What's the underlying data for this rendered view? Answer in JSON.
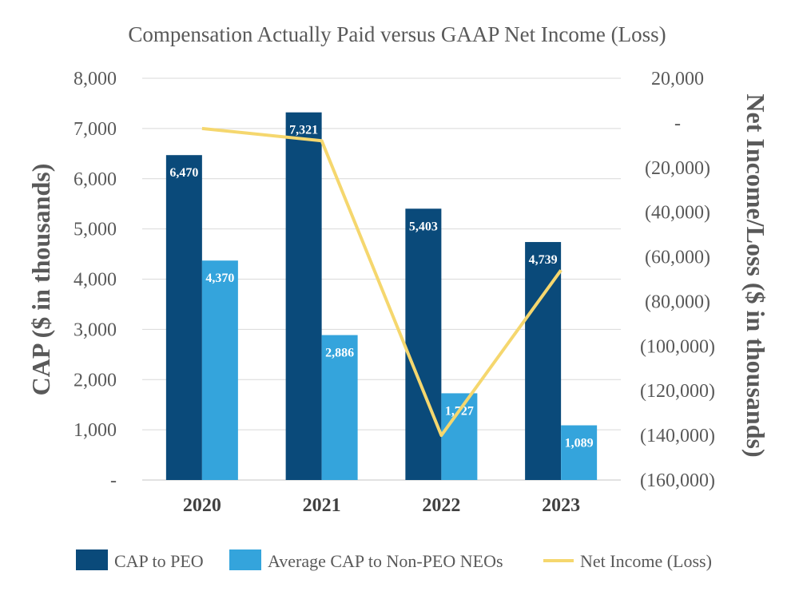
{
  "chart_data": {
    "type": "bar",
    "title": "Compensation Actually Paid versus GAAP Net Income (Loss)",
    "categories": [
      "2020",
      "2021",
      "2022",
      "2023"
    ],
    "ylabel": "CAP ($ in thousands)",
    "y2label": "Net Income/Loss ($ in thousands)",
    "ylim": [
      0,
      8000
    ],
    "y2lim": [
      -160000,
      20000
    ],
    "yticks": [
      {
        "value": 0,
        "label": "-"
      },
      {
        "value": 1000,
        "label": "1,000"
      },
      {
        "value": 2000,
        "label": "2,000"
      },
      {
        "value": 3000,
        "label": "3,000"
      },
      {
        "value": 4000,
        "label": "4,000"
      },
      {
        "value": 5000,
        "label": "5,000"
      },
      {
        "value": 6000,
        "label": "6,000"
      },
      {
        "value": 7000,
        "label": "7,000"
      },
      {
        "value": 8000,
        "label": "8,000"
      }
    ],
    "y2ticks": [
      {
        "value": 20000,
        "label": "20,000"
      },
      {
        "value": 0,
        "label": "-"
      },
      {
        "value": -20000,
        "label": "(20,000)"
      },
      {
        "value": -40000,
        "label": "(40,000)"
      },
      {
        "value": -60000,
        "label": "(60,000)"
      },
      {
        "value": -80000,
        "label": "(80,000)"
      },
      {
        "value": -100000,
        "label": "(100,000)"
      },
      {
        "value": -120000,
        "label": "(120,000)"
      },
      {
        "value": -140000,
        "label": "(140,000)"
      },
      {
        "value": -160000,
        "label": "(160,000)"
      }
    ],
    "grid": true,
    "legend_position": "bottom",
    "series": [
      {
        "name": "CAP to PEO",
        "kind": "bar",
        "axis": "left",
        "color": "#0a4a7a",
        "values": [
          6470,
          7321,
          5403,
          4739
        ],
        "labels": [
          "6,470",
          "7,321",
          "5,403",
          "4,739"
        ]
      },
      {
        "name": "Average CAP to Non-PEO NEOs",
        "kind": "bar",
        "axis": "left",
        "color": "#34a4dc",
        "values": [
          4370,
          2886,
          1727,
          1089
        ],
        "labels": [
          "4,370",
          "2,886",
          "1,727",
          "1,089"
        ]
      },
      {
        "name": "Net Income (Loss)",
        "kind": "line",
        "axis": "right",
        "color": "#f5d76e",
        "values": [
          -2500,
          -8000,
          -140000,
          -66000
        ]
      }
    ]
  }
}
